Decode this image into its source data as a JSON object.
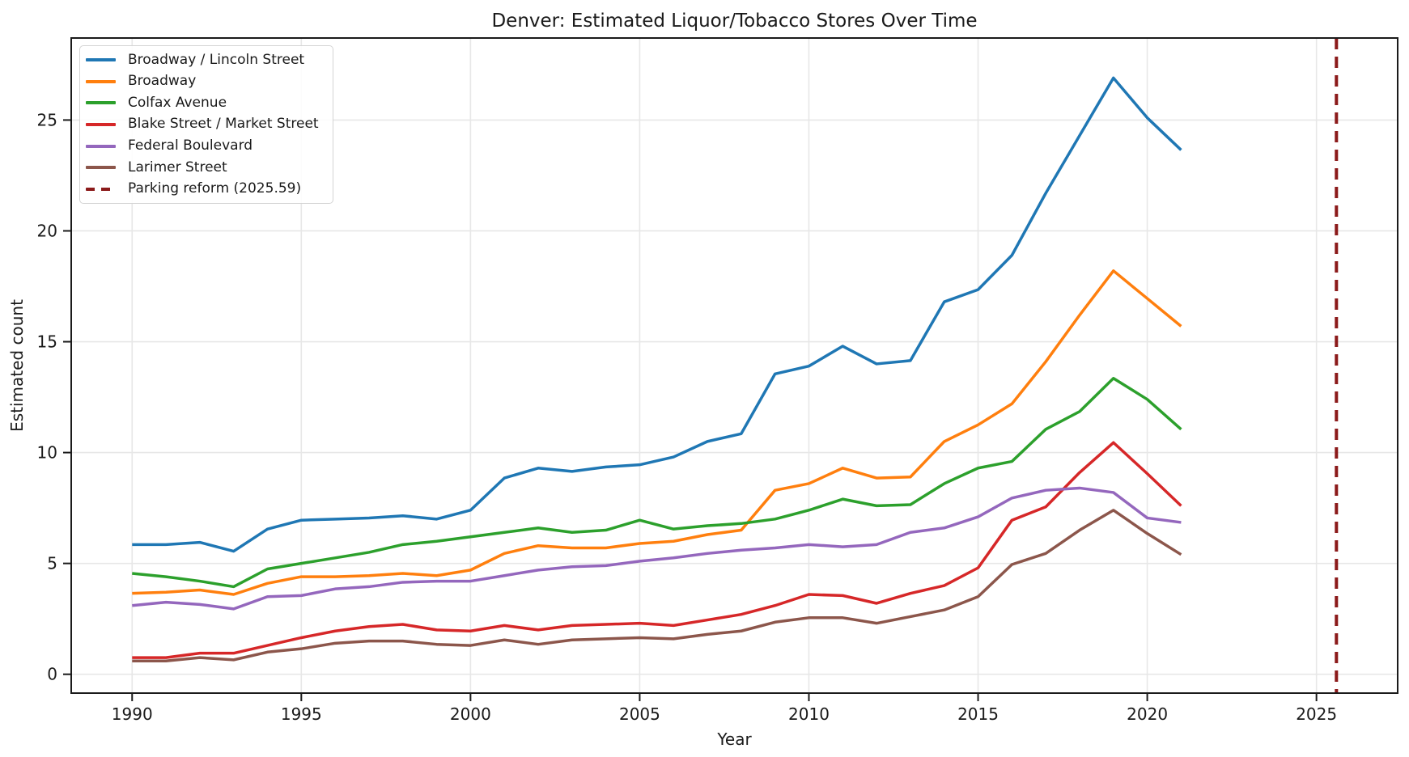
{
  "title": "Denver: Estimated Liquor/Tobacco Stores Over Time",
  "chart_data": {
    "type": "line",
    "title": "Denver: Estimated Liquor/Tobacco Stores Over Time",
    "xlabel": "Year",
    "ylabel": "Estimated count",
    "xlim": [
      1988.2,
      2027.4
    ],
    "ylim": [
      -0.85,
      28.7
    ],
    "xticks": [
      1990,
      1995,
      2000,
      2005,
      2010,
      2015,
      2020,
      2025
    ],
    "yticks": [
      0,
      5,
      10,
      15,
      20,
      25
    ],
    "grid": true,
    "legend_position": "upper-left",
    "x": [
      1990,
      1991,
      1992,
      1993,
      1994,
      1995,
      1996,
      1997,
      1998,
      1999,
      2000,
      2001,
      2002,
      2003,
      2004,
      2005,
      2006,
      2007,
      2008,
      2009,
      2010,
      2011,
      2012,
      2013,
      2014,
      2015,
      2016,
      2017,
      2018,
      2019,
      2020,
      2021
    ],
    "series": [
      {
        "name": "Broadway / Lincoln Street",
        "color": "#1f77b4",
        "values": [
          5.85,
          5.85,
          5.95,
          5.55,
          6.55,
          6.95,
          7.0,
          7.05,
          7.15,
          7.0,
          7.4,
          8.85,
          9.3,
          9.15,
          9.35,
          9.45,
          9.8,
          10.5,
          10.85,
          13.55,
          13.9,
          14.8,
          14.0,
          14.15,
          16.8,
          17.35,
          18.9,
          21.7,
          24.3,
          26.9,
          25.1,
          23.65
        ]
      },
      {
        "name": "Broadway",
        "color": "#ff7f0e",
        "values": [
          3.65,
          3.7,
          3.8,
          3.6,
          4.1,
          4.4,
          4.4,
          4.45,
          4.55,
          4.45,
          4.7,
          5.45,
          5.8,
          5.7,
          5.7,
          5.9,
          6.0,
          6.3,
          6.5,
          8.3,
          8.6,
          9.3,
          8.85,
          8.9,
          10.5,
          11.25,
          12.2,
          14.1,
          16.2,
          18.2,
          16.95,
          15.7
        ]
      },
      {
        "name": "Colfax Avenue",
        "color": "#2ca02c",
        "values": [
          4.55,
          4.4,
          4.2,
          3.95,
          4.75,
          5.0,
          5.25,
          5.5,
          5.85,
          6.0,
          6.2,
          6.4,
          6.6,
          6.4,
          6.5,
          6.95,
          6.55,
          6.7,
          6.8,
          7.0,
          7.4,
          7.9,
          7.6,
          7.65,
          8.6,
          9.3,
          9.6,
          11.05,
          11.85,
          13.35,
          12.4,
          11.05
        ]
      },
      {
        "name": "Blake Street / Market Street",
        "color": "#d62728",
        "values": [
          0.75,
          0.75,
          0.95,
          0.95,
          1.3,
          1.65,
          1.95,
          2.15,
          2.25,
          2.0,
          1.95,
          2.2,
          2.0,
          2.2,
          2.25,
          2.3,
          2.2,
          2.45,
          2.7,
          3.1,
          3.6,
          3.55,
          3.2,
          3.65,
          4.0,
          4.8,
          6.95,
          7.55,
          9.1,
          10.45,
          9.05,
          7.6
        ]
      },
      {
        "name": "Federal Boulevard",
        "color": "#9467bd",
        "values": [
          3.1,
          3.25,
          3.15,
          2.95,
          3.5,
          3.55,
          3.85,
          3.95,
          4.15,
          4.2,
          4.2,
          4.45,
          4.7,
          4.85,
          4.9,
          5.1,
          5.25,
          5.45,
          5.6,
          5.7,
          5.85,
          5.75,
          5.85,
          6.4,
          6.6,
          7.1,
          7.95,
          8.3,
          8.4,
          8.2,
          7.05,
          6.85
        ]
      },
      {
        "name": "Larimer Street",
        "color": "#8c564b",
        "values": [
          0.6,
          0.6,
          0.75,
          0.65,
          1.0,
          1.15,
          1.4,
          1.5,
          1.5,
          1.35,
          1.3,
          1.55,
          1.35,
          1.55,
          1.6,
          1.65,
          1.6,
          1.8,
          1.95,
          2.35,
          2.55,
          2.55,
          2.3,
          2.6,
          2.9,
          3.5,
          4.95,
          5.45,
          6.5,
          7.4,
          6.35,
          5.4
        ]
      }
    ],
    "vline": {
      "label": "Parking reform (2025.59)",
      "x": 2025.59,
      "color": "#8b1a1a",
      "style": "dashed"
    }
  },
  "colors": {
    "grid": "#e7e7e7",
    "spine": "#1a1a1a",
    "background": "#ffffff"
  }
}
